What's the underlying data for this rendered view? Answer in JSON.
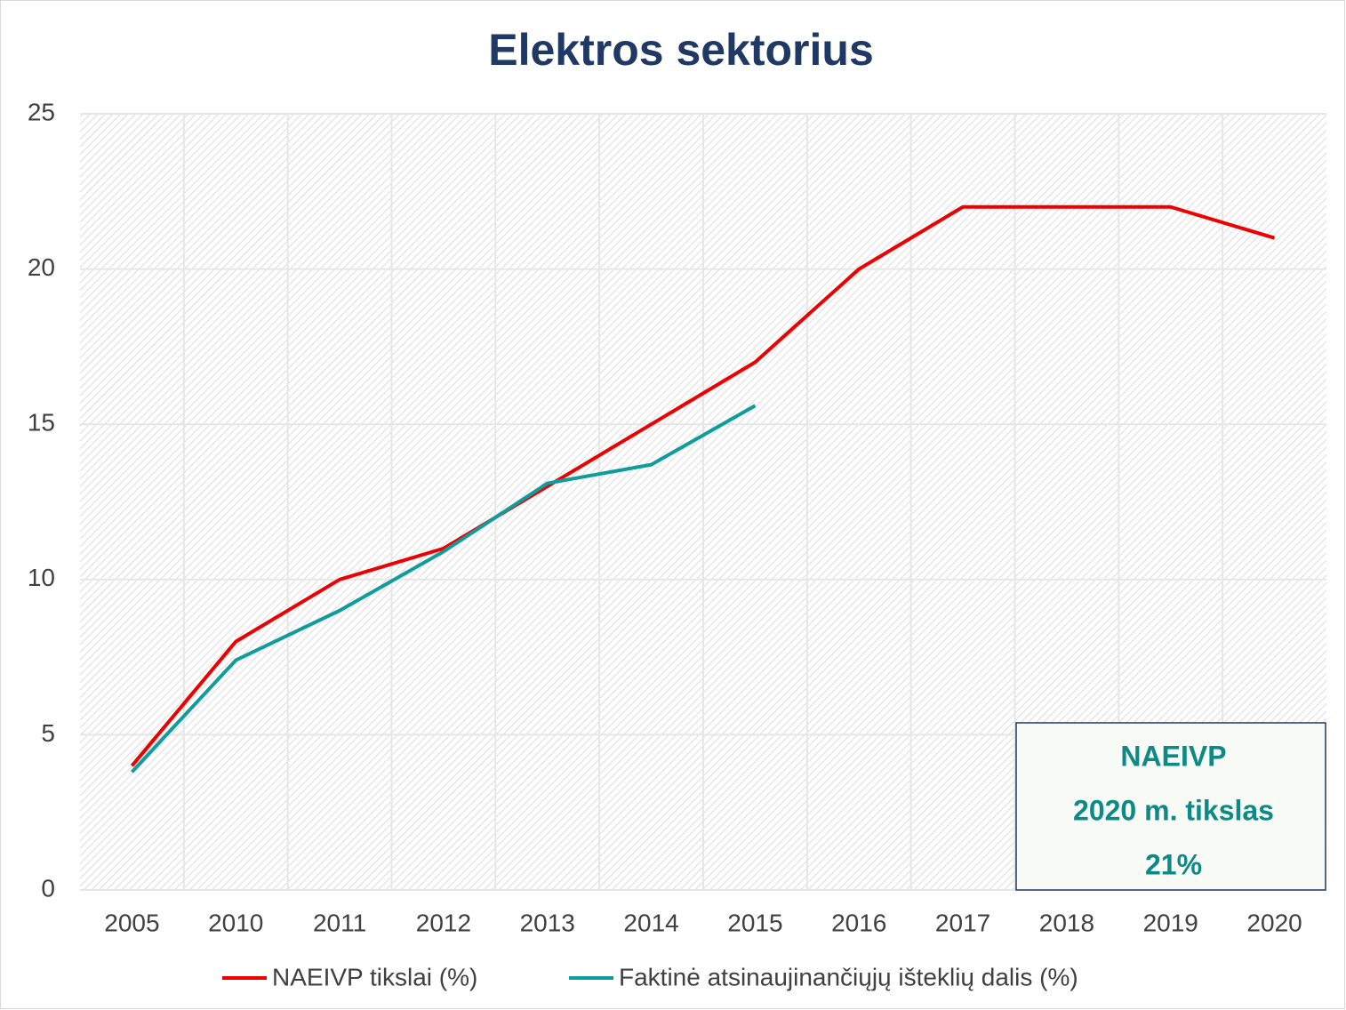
{
  "chart_data": {
    "type": "line",
    "title": "Elektros sektorius",
    "categories": [
      "2005",
      "2010",
      "2011",
      "2012",
      "2013",
      "2014",
      "2015",
      "2016",
      "2017",
      "2018",
      "2019",
      "2020"
    ],
    "series": [
      {
        "name": "NAEIVP tikslai (%)",
        "color": "#ee0000",
        "values": [
          4,
          8,
          10,
          11,
          13,
          15,
          17,
          20,
          22,
          22,
          22,
          21
        ]
      },
      {
        "name": "Faktinė atsinaujinančiųjų išteklių dalis (%)",
        "color": "#109c9c",
        "values": [
          3.8,
          7.4,
          9,
          10.9,
          13.1,
          13.7,
          15.6,
          null,
          null,
          null,
          null,
          null
        ]
      }
    ],
    "ylim": [
      0,
      25
    ],
    "yticks": [
      0,
      5,
      10,
      15,
      20,
      25
    ],
    "grid": true,
    "legend": "bottom",
    "annotation": [
      "NAEIVP",
      "2020 m. tikslas",
      "21%"
    ]
  }
}
